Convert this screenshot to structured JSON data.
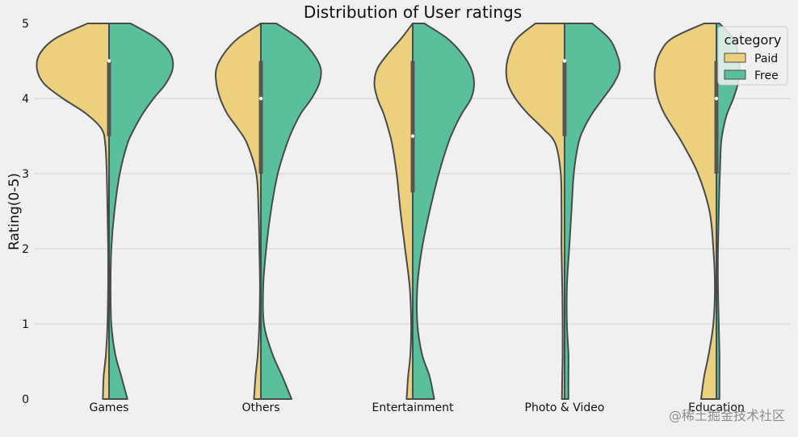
{
  "chart_data": {
    "type": "violin",
    "title": "Distribution of User ratings",
    "xlabel": "",
    "ylabel": "Rating(0-5)",
    "ylim": [
      0,
      5
    ],
    "yticks": [
      0,
      1,
      2,
      3,
      4,
      5
    ],
    "grid": true,
    "categories": [
      "Games",
      "Others",
      "Entertainment",
      "Photo & Video",
      "Education"
    ],
    "legend": {
      "title": "category",
      "position": "top-right",
      "entries": [
        "Paid",
        "Free"
      ]
    },
    "colors": {
      "Paid": "#ecd07d",
      "Free": "#5ac09b",
      "outline": "#4a4a4a",
      "box": "#555555",
      "grid": "#d0d0d0",
      "background": "#f0f0f0"
    },
    "split": true,
    "violins": [
      {
        "category": "Games",
        "paid_profile": [
          [
            5.0,
            0.28
          ],
          [
            4.8,
            0.7
          ],
          [
            4.6,
            0.9
          ],
          [
            4.4,
            0.94
          ],
          [
            4.2,
            0.85
          ],
          [
            4.0,
            0.6
          ],
          [
            3.8,
            0.3
          ],
          [
            3.6,
            0.1
          ],
          [
            3.4,
            0.05
          ],
          [
            3.0,
            0.03
          ],
          [
            2.5,
            0.02
          ],
          [
            2.0,
            0.012
          ],
          [
            1.5,
            0.012
          ],
          [
            1.0,
            0.02
          ],
          [
            0.6,
            0.04
          ],
          [
            0.3,
            0.07
          ],
          [
            0.0,
            0.08
          ]
        ],
        "free_profile": [
          [
            5.0,
            0.28
          ],
          [
            4.8,
            0.62
          ],
          [
            4.6,
            0.8
          ],
          [
            4.4,
            0.83
          ],
          [
            4.2,
            0.74
          ],
          [
            4.0,
            0.58
          ],
          [
            3.8,
            0.44
          ],
          [
            3.6,
            0.33
          ],
          [
            3.4,
            0.24
          ],
          [
            3.0,
            0.14
          ],
          [
            2.5,
            0.07
          ],
          [
            2.0,
            0.03
          ],
          [
            1.5,
            0.02
          ],
          [
            1.0,
            0.03
          ],
          [
            0.6,
            0.08
          ],
          [
            0.3,
            0.16
          ],
          [
            0.0,
            0.24
          ]
        ],
        "box": {
          "q1": 3.5,
          "q3": 4.5,
          "median": 4.5
        }
      },
      {
        "category": "Others",
        "paid_profile": [
          [
            5.0,
            0.0
          ],
          [
            4.8,
            0.3
          ],
          [
            4.6,
            0.48
          ],
          [
            4.4,
            0.58
          ],
          [
            4.2,
            0.58
          ],
          [
            4.0,
            0.53
          ],
          [
            3.8,
            0.44
          ],
          [
            3.6,
            0.3
          ],
          [
            3.4,
            0.18
          ],
          [
            3.0,
            0.06
          ],
          [
            2.5,
            0.03
          ],
          [
            2.0,
            0.02
          ],
          [
            1.5,
            0.012
          ],
          [
            1.0,
            0.02
          ],
          [
            0.6,
            0.04
          ],
          [
            0.3,
            0.07
          ],
          [
            0.0,
            0.09
          ]
        ],
        "free_profile": [
          [
            5.0,
            0.2
          ],
          [
            4.8,
            0.5
          ],
          [
            4.6,
            0.68
          ],
          [
            4.4,
            0.78
          ],
          [
            4.2,
            0.76
          ],
          [
            4.0,
            0.66
          ],
          [
            3.8,
            0.52
          ],
          [
            3.6,
            0.42
          ],
          [
            3.4,
            0.34
          ],
          [
            3.0,
            0.22
          ],
          [
            2.5,
            0.13
          ],
          [
            2.0,
            0.07
          ],
          [
            1.5,
            0.03
          ],
          [
            1.0,
            0.04
          ],
          [
            0.6,
            0.15
          ],
          [
            0.3,
            0.28
          ],
          [
            0.0,
            0.4
          ]
        ],
        "box": {
          "q1": 3.0,
          "q3": 4.5,
          "median": 4.0
        }
      },
      {
        "category": "Entertainment",
        "paid_profile": [
          [
            5.0,
            0.0
          ],
          [
            4.8,
            0.15
          ],
          [
            4.6,
            0.32
          ],
          [
            4.4,
            0.46
          ],
          [
            4.2,
            0.5
          ],
          [
            4.0,
            0.46
          ],
          [
            3.8,
            0.38
          ],
          [
            3.6,
            0.32
          ],
          [
            3.4,
            0.27
          ],
          [
            3.0,
            0.21
          ],
          [
            2.5,
            0.16
          ],
          [
            2.0,
            0.1
          ],
          [
            1.5,
            0.04
          ],
          [
            1.0,
            0.02
          ],
          [
            0.6,
            0.03
          ],
          [
            0.3,
            0.06
          ],
          [
            0.0,
            0.08
          ]
        ],
        "free_profile": [
          [
            5.0,
            0.15
          ],
          [
            4.8,
            0.45
          ],
          [
            4.6,
            0.64
          ],
          [
            4.4,
            0.76
          ],
          [
            4.2,
            0.8
          ],
          [
            4.0,
            0.76
          ],
          [
            3.8,
            0.64
          ],
          [
            3.6,
            0.54
          ],
          [
            3.4,
            0.46
          ],
          [
            3.0,
            0.34
          ],
          [
            2.5,
            0.22
          ],
          [
            2.0,
            0.12
          ],
          [
            1.5,
            0.06
          ],
          [
            1.0,
            0.06
          ],
          [
            0.6,
            0.12
          ],
          [
            0.3,
            0.22
          ],
          [
            0.0,
            0.28
          ]
        ],
        "box": {
          "q1": 2.75,
          "q3": 4.5,
          "median": 3.5
        }
      },
      {
        "category": "Photo & Video",
        "paid_profile": [
          [
            5.0,
            0.38
          ],
          [
            4.8,
            0.62
          ],
          [
            4.6,
            0.72
          ],
          [
            4.4,
            0.76
          ],
          [
            4.2,
            0.74
          ],
          [
            4.0,
            0.64
          ],
          [
            3.8,
            0.48
          ],
          [
            3.6,
            0.28
          ],
          [
            3.4,
            0.12
          ],
          [
            3.0,
            0.05
          ],
          [
            2.5,
            0.04
          ],
          [
            2.0,
            0.04
          ],
          [
            1.5,
            0.03
          ],
          [
            1.0,
            0.025
          ],
          [
            0.6,
            0.025
          ],
          [
            0.3,
            0.03
          ],
          [
            0.0,
            0.035
          ]
        ],
        "free_profile": [
          [
            5.0,
            0.36
          ],
          [
            4.8,
            0.58
          ],
          [
            4.6,
            0.68
          ],
          [
            4.4,
            0.72
          ],
          [
            4.2,
            0.64
          ],
          [
            4.0,
            0.5
          ],
          [
            3.8,
            0.36
          ],
          [
            3.6,
            0.25
          ],
          [
            3.4,
            0.18
          ],
          [
            3.0,
            0.12
          ],
          [
            2.5,
            0.09
          ],
          [
            2.0,
            0.06
          ],
          [
            1.5,
            0.03
          ],
          [
            1.0,
            0.03
          ],
          [
            0.6,
            0.05
          ],
          [
            0.3,
            0.05
          ],
          [
            0.0,
            0.05
          ]
        ],
        "box": {
          "q1": 3.5,
          "q3": 4.5,
          "median": 4.5
        }
      },
      {
        "category": "Education",
        "paid_profile": [
          [
            5.0,
            0.16
          ],
          [
            4.8,
            0.58
          ],
          [
            4.6,
            0.74
          ],
          [
            4.4,
            0.8
          ],
          [
            4.2,
            0.8
          ],
          [
            4.0,
            0.76
          ],
          [
            3.8,
            0.68
          ],
          [
            3.6,
            0.56
          ],
          [
            3.4,
            0.44
          ],
          [
            3.0,
            0.24
          ],
          [
            2.5,
            0.09
          ],
          [
            2.0,
            0.04
          ],
          [
            1.5,
            0.02
          ],
          [
            1.0,
            0.04
          ],
          [
            0.6,
            0.1
          ],
          [
            0.3,
            0.16
          ],
          [
            0.0,
            0.2
          ]
        ],
        "free_profile": [
          [
            5.0,
            0.04
          ],
          [
            4.8,
            0.22
          ],
          [
            4.6,
            0.28
          ],
          [
            4.4,
            0.3
          ],
          [
            4.2,
            0.28
          ],
          [
            4.0,
            0.22
          ],
          [
            3.8,
            0.14
          ],
          [
            3.6,
            0.09
          ],
          [
            3.4,
            0.06
          ],
          [
            3.0,
            0.045
          ],
          [
            2.5,
            0.03
          ],
          [
            2.0,
            0.02
          ],
          [
            1.5,
            0.02
          ],
          [
            1.0,
            0.03
          ],
          [
            0.6,
            0.04
          ],
          [
            0.3,
            0.04
          ],
          [
            0.0,
            0.04
          ]
        ],
        "box": {
          "q1": 3.0,
          "q3": 4.5,
          "median": 4.0
        }
      }
    ]
  },
  "watermark": "@稀土掘金技术社区"
}
